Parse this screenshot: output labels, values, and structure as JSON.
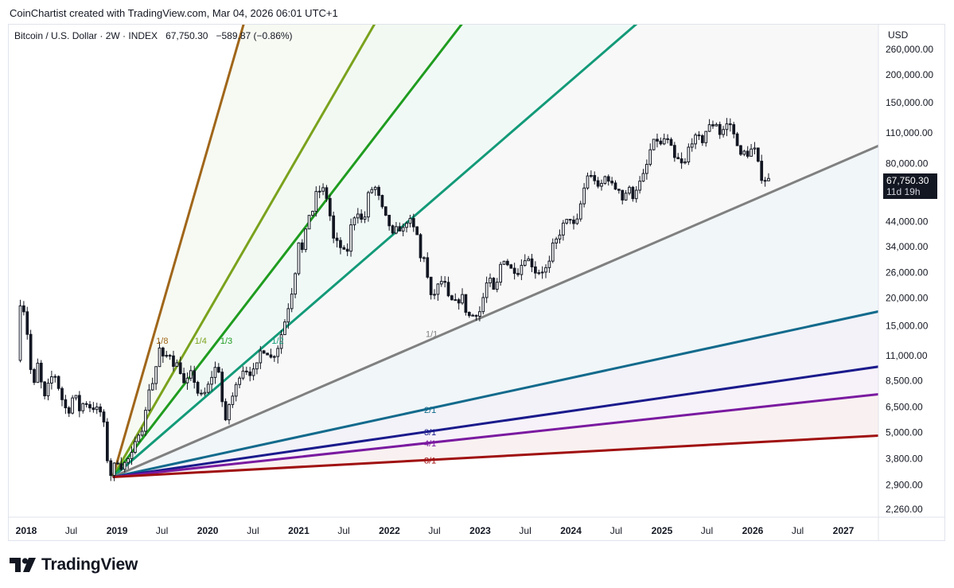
{
  "header": {
    "attribution": "CoinChartist created with TradingView.com, Mar 04, 2026 06:01 UTC+1"
  },
  "legend": {
    "symbol": "Bitcoin / U.S. Dollar · 2W · INDEX",
    "price": "67,750.30",
    "change": "−589.87 (−0.86%)"
  },
  "axis": {
    "currency": "USD",
    "last_price": "67,750.30",
    "countdown": "11d 19h"
  },
  "footer": {
    "brand": "TradingView"
  },
  "colors": {
    "line_1_8": "#a0661a",
    "line_1_4": "#7aa21d",
    "line_1_3": "#1f9c1f",
    "line_1_2": "#139a78",
    "line_1_1": "#808080",
    "line_2_1": "#126a8c",
    "line_3_1": "#1a1a8c",
    "line_4_1": "#7a1aa0",
    "line_8_1": "#a01010"
  },
  "chart_data": {
    "type": "candlestick",
    "y_scale": "log",
    "y_ticks": [
      {
        "value": 260000,
        "label": "260,000.00"
      },
      {
        "value": 200000,
        "label": "200,000.00"
      },
      {
        "value": 150000,
        "label": "150,000.00"
      },
      {
        "value": 110000,
        "label": "110,000.00"
      },
      {
        "value": 80000,
        "label": "80,000.00"
      },
      {
        "value": 44000,
        "label": "44,000.00"
      },
      {
        "value": 34000,
        "label": "34,000.00"
      },
      {
        "value": 26000,
        "label": "26,000.00"
      },
      {
        "value": 20000,
        "label": "20,000.00"
      },
      {
        "value": 15000,
        "label": "15,000.00"
      },
      {
        "value": 11000,
        "label": "11,000.00"
      },
      {
        "value": 8500,
        "label": "8,500.00"
      },
      {
        "value": 6500,
        "label": "6,500.00"
      },
      {
        "value": 5000,
        "label": "5,000.00"
      },
      {
        "value": 3800,
        "label": "3,800.00"
      },
      {
        "value": 2900,
        "label": "2,900.00"
      },
      {
        "value": 2260,
        "label": "2,260.00"
      }
    ],
    "x_ticks": [
      {
        "date": "2018-01-01",
        "label": "2018",
        "bold": true
      },
      {
        "date": "2018-07-01",
        "label": "Jul",
        "bold": false
      },
      {
        "date": "2019-01-01",
        "label": "2019",
        "bold": true
      },
      {
        "date": "2019-07-01",
        "label": "Jul",
        "bold": false
      },
      {
        "date": "2020-01-01",
        "label": "2020",
        "bold": true
      },
      {
        "date": "2020-07-01",
        "label": "Jul",
        "bold": false
      },
      {
        "date": "2021-01-01",
        "label": "2021",
        "bold": true
      },
      {
        "date": "2021-07-01",
        "label": "Jul",
        "bold": false
      },
      {
        "date": "2022-01-01",
        "label": "2022",
        "bold": true
      },
      {
        "date": "2022-07-01",
        "label": "Jul",
        "bold": false
      },
      {
        "date": "2023-01-01",
        "label": "2023",
        "bold": true
      },
      {
        "date": "2023-07-01",
        "label": "Jul",
        "bold": false
      },
      {
        "date": "2024-01-01",
        "label": "2024",
        "bold": true
      },
      {
        "date": "2024-07-01",
        "label": "Jul",
        "bold": false
      },
      {
        "date": "2025-01-01",
        "label": "2025",
        "bold": true
      },
      {
        "date": "2025-07-01",
        "label": "Jul",
        "bold": false
      },
      {
        "date": "2026-01-01",
        "label": "2026",
        "bold": true
      },
      {
        "date": "2026-07-01",
        "label": "Jul",
        "bold": false
      },
      {
        "date": "2027-01-01",
        "label": "2027",
        "bold": true
      }
    ],
    "gann_fan": {
      "origin": {
        "date": "2018-12-15",
        "price": 3150
      },
      "through_1x1": {
        "date": "2022-11-20",
        "price": 15500
      },
      "lines": [
        {
          "label": "1/8",
          "ratio": 8,
          "color": "#a0661a"
        },
        {
          "label": "1/4",
          "ratio": 4,
          "color": "#7aa21d"
        },
        {
          "label": "1/3",
          "ratio": 3,
          "color": "#1f9c1f"
        },
        {
          "label": "1/2",
          "ratio": 2,
          "color": "#139a78"
        },
        {
          "label": "1/1",
          "ratio": 1,
          "color": "#808080"
        },
        {
          "label": "2/1",
          "ratio": 0.5,
          "color": "#126a8c"
        },
        {
          "label": "3/1",
          "ratio": 0.3333,
          "color": "#1a1a8c"
        },
        {
          "label": "4/1",
          "ratio": 0.25,
          "color": "#7a1aa0"
        },
        {
          "label": "8/1",
          "ratio": 0.125,
          "color": "#a01010"
        }
      ]
    },
    "price_path": [
      [
        "2017-12-01",
        10500
      ],
      [
        "2017-12-15",
        19000
      ],
      [
        "2018-01-05",
        17000
      ],
      [
        "2018-01-20",
        11000
      ],
      [
        "2018-02-05",
        7500
      ],
      [
        "2018-02-20",
        10500
      ],
      [
        "2018-03-10",
        8200
      ],
      [
        "2018-03-25",
        7000
      ],
      [
        "2018-04-10",
        8500
      ],
      [
        "2018-05-01",
        9200
      ],
      [
        "2018-05-20",
        7800
      ],
      [
        "2018-06-10",
        6500
      ],
      [
        "2018-06-28",
        6200
      ],
      [
        "2018-07-20",
        7600
      ],
      [
        "2018-08-10",
        6300
      ],
      [
        "2018-08-30",
        6900
      ],
      [
        "2018-09-20",
        6500
      ],
      [
        "2018-10-10",
        6400
      ],
      [
        "2018-10-30",
        6300
      ],
      [
        "2018-11-15",
        5600
      ],
      [
        "2018-11-25",
        4000
      ],
      [
        "2018-12-15",
        3200
      ],
      [
        "2019-01-05",
        3800
      ],
      [
        "2019-01-25",
        3500
      ],
      [
        "2019-02-15",
        3700
      ],
      [
        "2019-03-10",
        4000
      ],
      [
        "2019-04-05",
        5000
      ],
      [
        "2019-04-25",
        5300
      ],
      [
        "2019-05-15",
        7800
      ],
      [
        "2019-06-05",
        8500
      ],
      [
        "2019-06-26",
        12000
      ],
      [
        "2019-07-15",
        10500
      ],
      [
        "2019-08-05",
        11500
      ],
      [
        "2019-08-25",
        10000
      ],
      [
        "2019-09-15",
        10200
      ],
      [
        "2019-09-28",
        8200
      ],
      [
        "2019-10-15",
        8300
      ],
      [
        "2019-10-28",
        9400
      ],
      [
        "2019-11-15",
        8500
      ],
      [
        "2019-12-01",
        7400
      ],
      [
        "2019-12-20",
        7200
      ],
      [
        "2020-01-10",
        8100
      ],
      [
        "2020-02-01",
        9400
      ],
      [
        "2020-02-15",
        10100
      ],
      [
        "2020-03-01",
        8600
      ],
      [
        "2020-03-13",
        5000
      ],
      [
        "2020-04-01",
        6600
      ],
      [
        "2020-04-25",
        7600
      ],
      [
        "2020-05-10",
        8800
      ],
      [
        "2020-06-01",
        9700
      ],
      [
        "2020-06-25",
        9200
      ],
      [
        "2020-07-20",
        9500
      ],
      [
        "2020-08-05",
        11500
      ],
      [
        "2020-08-30",
        11700
      ],
      [
        "2020-09-15",
        10700
      ],
      [
        "2020-10-10",
        11400
      ],
      [
        "2020-10-28",
        13500
      ],
      [
        "2020-11-15",
        16000
      ],
      [
        "2020-12-01",
        19000
      ],
      [
        "2020-12-20",
        23500
      ],
      [
        "2021-01-08",
        36000
      ],
      [
        "2021-01-25",
        32000
      ],
      [
        "2021-02-15",
        48000
      ],
      [
        "2021-03-01",
        46000
      ],
      [
        "2021-03-15",
        58000
      ],
      [
        "2021-04-14",
        62000
      ],
      [
        "2021-05-01",
        56000
      ],
      [
        "2021-05-15",
        46000
      ],
      [
        "2021-05-25",
        37000
      ],
      [
        "2021-06-15",
        35000
      ],
      [
        "2021-07-01",
        33000
      ],
      [
        "2021-07-20",
        31000
      ],
      [
        "2021-08-10",
        45000
      ],
      [
        "2021-09-05",
        49000
      ],
      [
        "2021-09-25",
        42000
      ],
      [
        "2021-10-15",
        58000
      ],
      [
        "2021-11-08",
        64000
      ],
      [
        "2021-11-25",
        57000
      ],
      [
        "2021-12-15",
        48000
      ],
      [
        "2022-01-05",
        43000
      ],
      [
        "2022-01-25",
        37000
      ],
      [
        "2022-02-10",
        43000
      ],
      [
        "2022-02-25",
        39000
      ],
      [
        "2022-03-25",
        46000
      ],
      [
        "2022-04-10",
        42000
      ],
      [
        "2022-04-30",
        38000
      ],
      [
        "2022-05-12",
        30000
      ],
      [
        "2022-06-01",
        31000
      ],
      [
        "2022-06-18",
        20000
      ],
      [
        "2022-07-05",
        20500
      ],
      [
        "2022-07-28",
        23500
      ],
      [
        "2022-08-15",
        24000
      ],
      [
        "2022-09-01",
        20000
      ],
      [
        "2022-09-25",
        19000
      ],
      [
        "2022-10-15",
        19500
      ],
      [
        "2022-11-01",
        20500
      ],
      [
        "2022-11-15",
        16500
      ],
      [
        "2022-12-15",
        16800
      ],
      [
        "2023-01-10",
        17500
      ],
      [
        "2023-01-30",
        23000
      ],
      [
        "2023-02-20",
        24000
      ],
      [
        "2023-03-10",
        20000
      ],
      [
        "2023-03-25",
        27500
      ],
      [
        "2023-04-15",
        30000
      ],
      [
        "2023-05-10",
        27000
      ],
      [
        "2023-06-15",
        26000
      ],
      [
        "2023-07-01",
        30500
      ],
      [
        "2023-07-25",
        29500
      ],
      [
        "2023-08-20",
        26000
      ],
      [
        "2023-09-15",
        26500
      ],
      [
        "2023-10-10",
        27500
      ],
      [
        "2023-10-25",
        34000
      ],
      [
        "2023-11-15",
        37000
      ],
      [
        "2023-12-10",
        43000
      ],
      [
        "2024-01-10",
        46000
      ],
      [
        "2024-01-25",
        40000
      ],
      [
        "2024-02-15",
        52000
      ],
      [
        "2024-03-01",
        62000
      ],
      [
        "2024-03-14",
        71000
      ],
      [
        "2024-04-10",
        69000
      ],
      [
        "2024-04-30",
        60000
      ],
      [
        "2024-05-20",
        70000
      ],
      [
        "2024-06-10",
        68000
      ],
      [
        "2024-06-30",
        61000
      ],
      [
        "2024-07-15",
        64000
      ],
      [
        "2024-08-05",
        54000
      ],
      [
        "2024-08-25",
        64000
      ],
      [
        "2024-09-10",
        56000
      ],
      [
        "2024-09-30",
        63000
      ],
      [
        "2024-10-20",
        68000
      ],
      [
        "2024-11-10",
        80000
      ],
      [
        "2024-11-25",
        95000
      ],
      [
        "2024-12-15",
        104000
      ],
      [
        "2025-01-05",
        96000
      ],
      [
        "2025-01-20",
        105000
      ],
      [
        "2025-02-10",
        97000
      ],
      [
        "2025-02-28",
        84000
      ],
      [
        "2025-03-15",
        83000
      ],
      [
        "2025-04-07",
        77000
      ],
      [
        "2025-04-25",
        94000
      ],
      [
        "2025-05-15",
        104000
      ],
      [
        "2025-06-01",
        105000
      ],
      [
        "2025-06-20",
        101000
      ],
      [
        "2025-07-10",
        117000
      ],
      [
        "2025-07-25",
        118000
      ],
      [
        "2025-08-14",
        122000
      ],
      [
        "2025-08-30",
        108000
      ],
      [
        "2025-09-15",
        115000
      ],
      [
        "2025-10-06",
        124000
      ],
      [
        "2025-10-20",
        110000
      ],
      [
        "2025-11-05",
        101000
      ],
      [
        "2025-11-20",
        86000
      ],
      [
        "2025-12-05",
        90000
      ],
      [
        "2025-12-20",
        88000
      ],
      [
        "2026-01-10",
        95000
      ],
      [
        "2026-01-25",
        88000
      ],
      [
        "2026-02-05",
        71000
      ],
      [
        "2026-02-18",
        68000
      ],
      [
        "2026-03-04",
        67750
      ]
    ]
  }
}
